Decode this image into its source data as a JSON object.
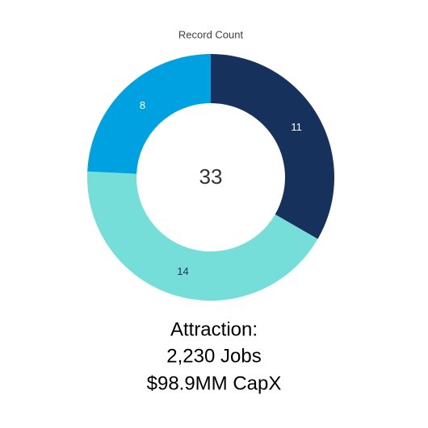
{
  "chart_data": {
    "type": "donut",
    "title": "Record Count",
    "values": [
      11,
      14,
      8
    ],
    "colors": [
      "#16325c",
      "#76ded9",
      "#00a1e0"
    ],
    "total": 33
  },
  "caption": [
    "Attraction:",
    "2,230 Jobs",
    "$98.9MM CapX"
  ]
}
